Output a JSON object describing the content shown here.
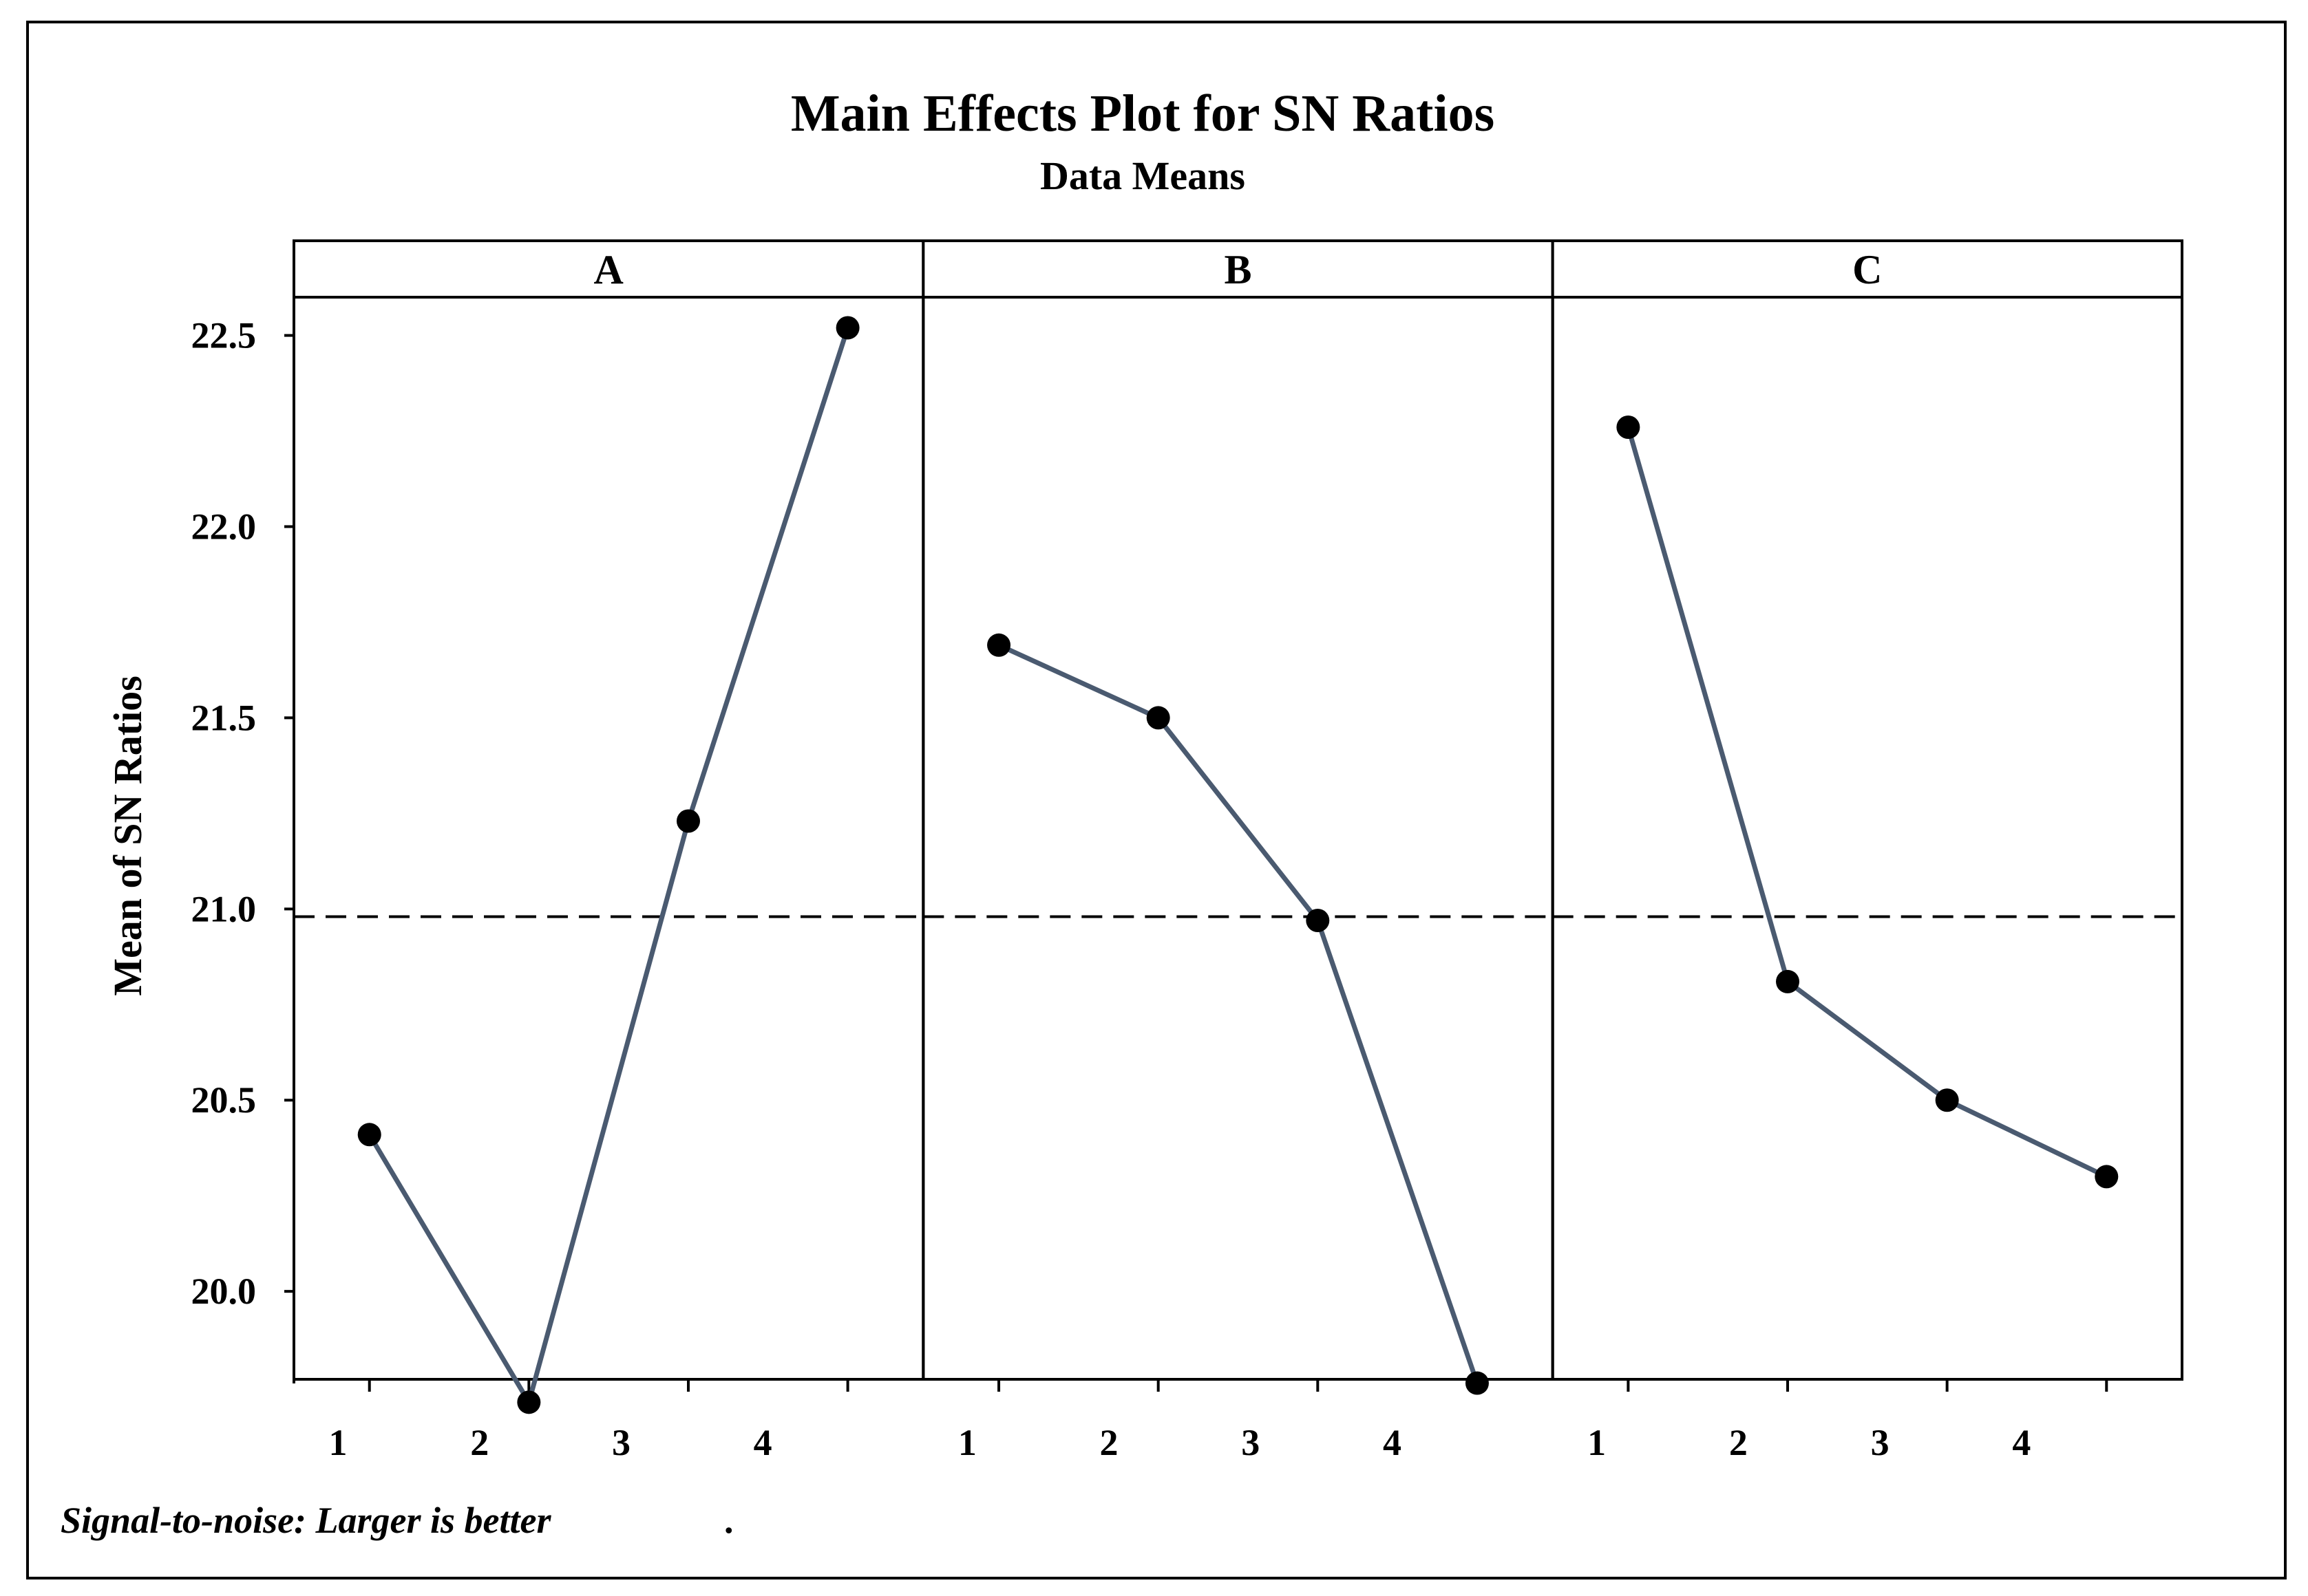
{
  "chart_data": {
    "type": "line",
    "title": "Main Effects Plot for SN Ratios",
    "subtitle": "Data Means",
    "ylabel": "Mean of SN Ratios",
    "ylim": [
      19.77,
      22.6
    ],
    "yticks": [
      "20.0",
      "20.5",
      "21.0",
      "21.5",
      "22.0",
      "22.5"
    ],
    "ytick_values": [
      20.0,
      20.5,
      21.0,
      21.5,
      22.0,
      22.5
    ],
    "reference_mean": 20.98,
    "footnote": "Signal-to-noise: Larger is better",
    "footnote_mark": ".",
    "panels": [
      {
        "name": "A",
        "tick_labels": [
          "1",
          "2",
          "3",
          "4"
        ],
        "values": [
          20.41,
          19.71,
          21.23,
          22.52
        ]
      },
      {
        "name": "B",
        "tick_labels": [
          "1",
          "2",
          "3",
          "4"
        ],
        "values": [
          21.69,
          21.5,
          20.97,
          19.76
        ]
      },
      {
        "name": "C",
        "tick_labels": [
          "1",
          "2",
          "3",
          "4"
        ],
        "values": [
          22.26,
          20.81,
          20.5,
          20.3
        ]
      }
    ],
    "colors": {
      "line": "#4a5a70",
      "marker": "#000000",
      "axis": "#000000",
      "reference": "#000000"
    }
  }
}
